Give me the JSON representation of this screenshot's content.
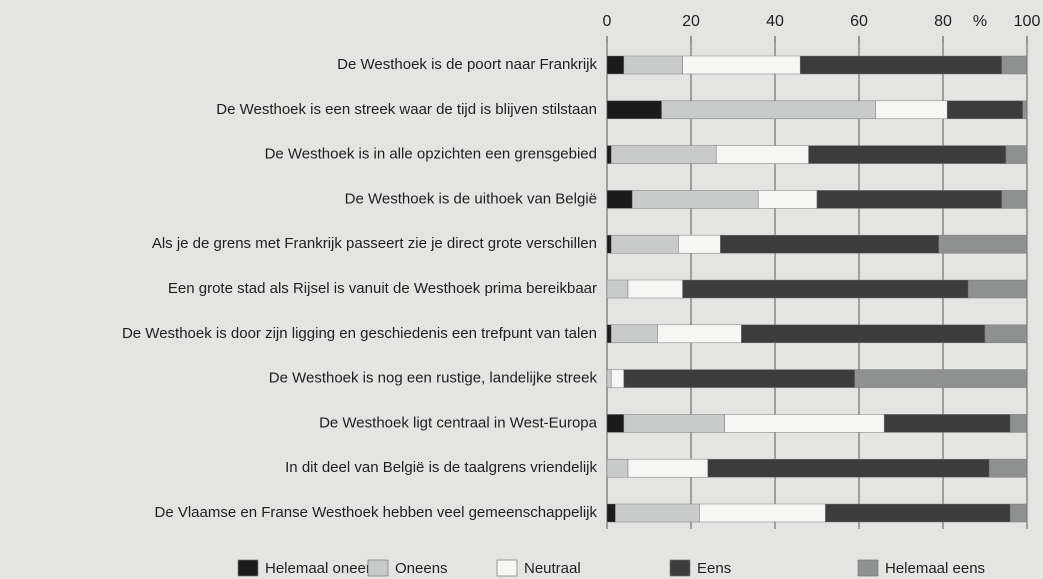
{
  "chart_data": {
    "type": "stacked-bar-horizontal",
    "categories": [
      "De Westhoek is de poort naar Frankrijk",
      "De Westhoek is een streek waar de tijd is blijven stilstaan",
      "De Westhoek is in alle opzichten een grensgebied",
      "De Westhoek is de uithoek van België",
      "Als je de grens met Frankrijk passeert zie je direct grote verschillen",
      "Een grote stad als Rijsel is vanuit de Westhoek prima bereikbaar",
      "De Westhoek is door zijn ligging en geschiedenis een trefpunt van talen",
      "De Westhoek is nog een rustige, landelijke streek",
      "De Westhoek ligt centraal in West-Europa",
      "In dit deel van België is de taalgrens vriendelijk",
      "De Vlaamse en Franse Westhoek hebben veel gemeenschappelijk"
    ],
    "series": [
      {
        "name": "Helemaal oneens",
        "color": "#1b1b1b",
        "values": [
          4,
          13,
          1,
          6,
          1,
          0,
          1,
          0,
          4,
          0,
          2
        ]
      },
      {
        "name": "Oneens",
        "color": "#c8cbc9",
        "values": [
          14,
          51,
          25,
          30,
          16,
          5,
          11,
          1,
          24,
          5,
          20
        ]
      },
      {
        "name": "Neutraal",
        "color": "#f6f6f5",
        "values": [
          28,
          17,
          22,
          14,
          10,
          13,
          20,
          3,
          38,
          19,
          30
        ]
      },
      {
        "name": "Eens",
        "color": "#3c3c3c",
        "values": [
          48,
          18,
          47,
          44,
          52,
          68,
          58,
          55,
          30,
          67,
          44
        ]
      },
      {
        "name": "Helemaal eens",
        "color": "#8e9190",
        "values": [
          6,
          1,
          5,
          6,
          21,
          14,
          10,
          41,
          4,
          9,
          4
        ]
      }
    ],
    "xlim": [
      0,
      100
    ],
    "xticks": [
      0,
      20,
      40,
      60,
      80,
      100
    ],
    "unit_label": "%",
    "grid": true,
    "legend": "bottom"
  }
}
